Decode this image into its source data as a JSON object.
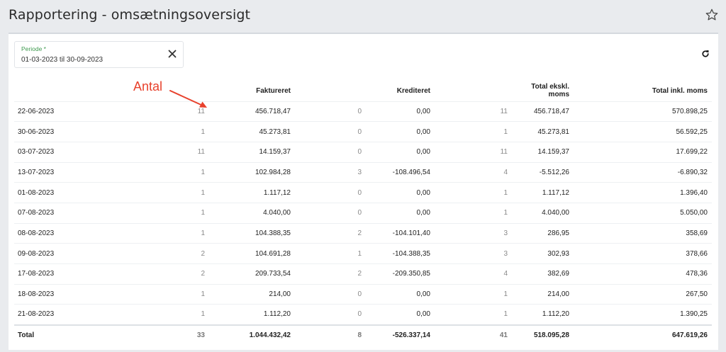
{
  "page": {
    "title": "Rapportering - omsætningsoversigt"
  },
  "filter": {
    "label": "Periode *",
    "value": "01-03-2023 til 30-09-2023"
  },
  "annotation": {
    "text": "Antal"
  },
  "table": {
    "headers": {
      "faktureret": "Faktureret",
      "krediteret": "Krediteret",
      "total_ex": "Total ekskl. moms",
      "total_inc": "Total inkl. moms"
    },
    "rows": [
      {
        "date": "22-06-2023",
        "f_count": "11",
        "f_amount": "456.718,47",
        "k_count": "0",
        "k_amount": "0,00",
        "t_count": "11",
        "t_ex": "456.718,47",
        "t_inc": "570.898,25"
      },
      {
        "date": "30-06-2023",
        "f_count": "1",
        "f_amount": "45.273,81",
        "k_count": "0",
        "k_amount": "0,00",
        "t_count": "1",
        "t_ex": "45.273,81",
        "t_inc": "56.592,25"
      },
      {
        "date": "03-07-2023",
        "f_count": "11",
        "f_amount": "14.159,37",
        "k_count": "0",
        "k_amount": "0,00",
        "t_count": "11",
        "t_ex": "14.159,37",
        "t_inc": "17.699,22"
      },
      {
        "date": "13-07-2023",
        "f_count": "1",
        "f_amount": "102.984,28",
        "k_count": "3",
        "k_amount": "-108.496,54",
        "t_count": "4",
        "t_ex": "-5.512,26",
        "t_inc": "-6.890,32"
      },
      {
        "date": "01-08-2023",
        "f_count": "1",
        "f_amount": "1.117,12",
        "k_count": "0",
        "k_amount": "0,00",
        "t_count": "1",
        "t_ex": "1.117,12",
        "t_inc": "1.396,40"
      },
      {
        "date": "07-08-2023",
        "f_count": "1",
        "f_amount": "4.040,00",
        "k_count": "0",
        "k_amount": "0,00",
        "t_count": "1",
        "t_ex": "4.040,00",
        "t_inc": "5.050,00"
      },
      {
        "date": "08-08-2023",
        "f_count": "1",
        "f_amount": "104.388,35",
        "k_count": "2",
        "k_amount": "-104.101,40",
        "t_count": "3",
        "t_ex": "286,95",
        "t_inc": "358,69"
      },
      {
        "date": "09-08-2023",
        "f_count": "2",
        "f_amount": "104.691,28",
        "k_count": "1",
        "k_amount": "-104.388,35",
        "t_count": "3",
        "t_ex": "302,93",
        "t_inc": "378,66"
      },
      {
        "date": "17-08-2023",
        "f_count": "2",
        "f_amount": "209.733,54",
        "k_count": "2",
        "k_amount": "-209.350,85",
        "t_count": "4",
        "t_ex": "382,69",
        "t_inc": "478,36"
      },
      {
        "date": "18-08-2023",
        "f_count": "1",
        "f_amount": "214,00",
        "k_count": "0",
        "k_amount": "0,00",
        "t_count": "1",
        "t_ex": "214,00",
        "t_inc": "267,50"
      },
      {
        "date": "21-08-2023",
        "f_count": "1",
        "f_amount": "1.112,20",
        "k_count": "0",
        "k_amount": "0,00",
        "t_count": "1",
        "t_ex": "1.112,20",
        "t_inc": "1.390,25"
      }
    ],
    "total": {
      "label": "Total",
      "f_count": "33",
      "f_amount": "1.044.432,42",
      "k_count": "8",
      "k_amount": "-526.337,14",
      "t_count": "41",
      "t_ex": "518.095,28",
      "t_inc": "647.619,26"
    }
  },
  "colors": {
    "accent_label": "#3f9a4f",
    "annotation": "#e8412c",
    "background": "#e9ebee"
  },
  "icons": {
    "favorite": "star-outline-icon",
    "clear": "close-icon",
    "refresh": "refresh-icon"
  }
}
